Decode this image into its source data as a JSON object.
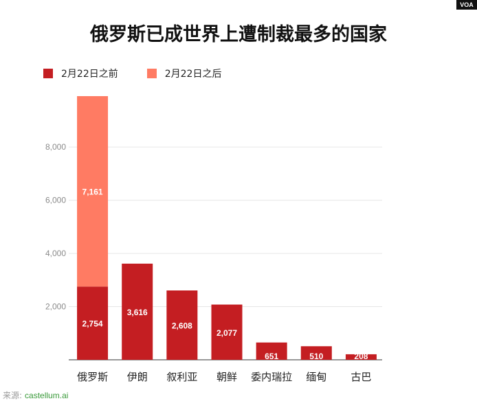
{
  "badge": "VOA",
  "title": "俄罗斯已成世界上遭制裁最多的国家",
  "legend": [
    {
      "label": "2月22日之前",
      "color": "#c41e22"
    },
    {
      "label": "2月22日之后",
      "color": "#ff7b63"
    }
  ],
  "source": {
    "label": "来源:",
    "link": "castellum.ai"
  },
  "chart_data": {
    "type": "bar",
    "stacked": true,
    "title": "俄罗斯已成世界上遭制裁最多的国家",
    "xlabel": "",
    "ylabel": "",
    "ylim": [
      0,
      9915
    ],
    "yticks": [
      2000,
      4000,
      6000,
      8000
    ],
    "ytick_labels": [
      "2,000",
      "4,000",
      "6,000",
      "8,000"
    ],
    "grid": true,
    "legend_position": "top-left",
    "categories": [
      "俄罗斯",
      "伊朗",
      "叙利亚",
      "朝鲜",
      "委内瑞拉",
      "缅甸",
      "古巴"
    ],
    "series": [
      {
        "name": "2月22日之前",
        "color": "#c41e22",
        "values": [
          2754,
          3616,
          2608,
          2077,
          651,
          510,
          208
        ],
        "labels": [
          "2,754",
          "3,616",
          "2,608",
          "2,077",
          "651",
          "510",
          "208"
        ]
      },
      {
        "name": "2月22日之后",
        "color": "#ff7b63",
        "values": [
          7161,
          0,
          0,
          0,
          0,
          0,
          0
        ],
        "labels": [
          "7,161",
          "",
          "",
          "",
          "",
          "",
          ""
        ]
      }
    ]
  }
}
